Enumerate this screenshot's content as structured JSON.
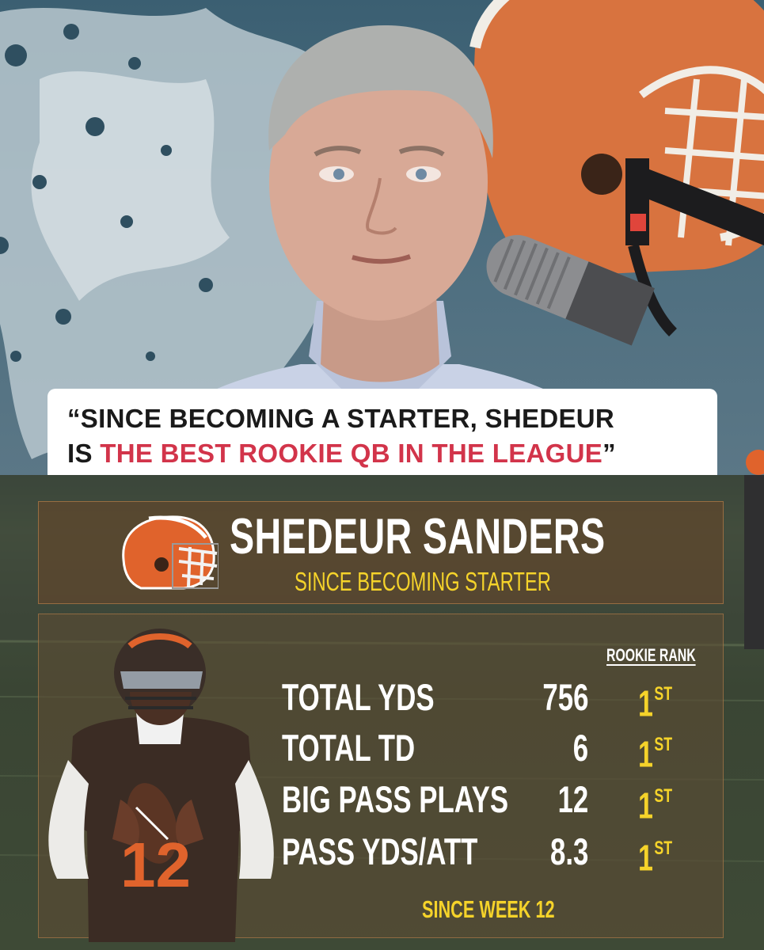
{
  "quote": {
    "part1": "“SINCE BECOMING A STARTER, SHEDEUR",
    "part2": "IS ",
    "highlight": "THE BEST ROOKIE QB IN THE LEAGUE",
    "close": "”",
    "highlight_color": "#d2344a"
  },
  "graphic": {
    "player_name": "SHEDEUR SANDERS",
    "subtitle": "SINCE BECOMING STARTER",
    "rank_header": "ROOKIE RANK",
    "stats": [
      {
        "label": "TOTAL YDS",
        "value": "756",
        "rank": "1",
        "suffix": "ST"
      },
      {
        "label": "TOTAL TD",
        "value": "6",
        "rank": "1",
        "suffix": "ST"
      },
      {
        "label": "BIG PASS PLAYS",
        "value": "12",
        "rank": "1",
        "suffix": "ST"
      },
      {
        "label": "PASS YDS/ATT",
        "value": "8.3",
        "rank": "1",
        "suffix": "ST"
      }
    ],
    "footnote": "SINCE WEEK 12",
    "accent_color": "#f5d32a",
    "team_orange": "#e0632c",
    "team_brown": "#4a2e1f",
    "jersey_number": "12"
  },
  "icons": [
    "browns-helmet-logo-icon",
    "microphone-icon"
  ]
}
